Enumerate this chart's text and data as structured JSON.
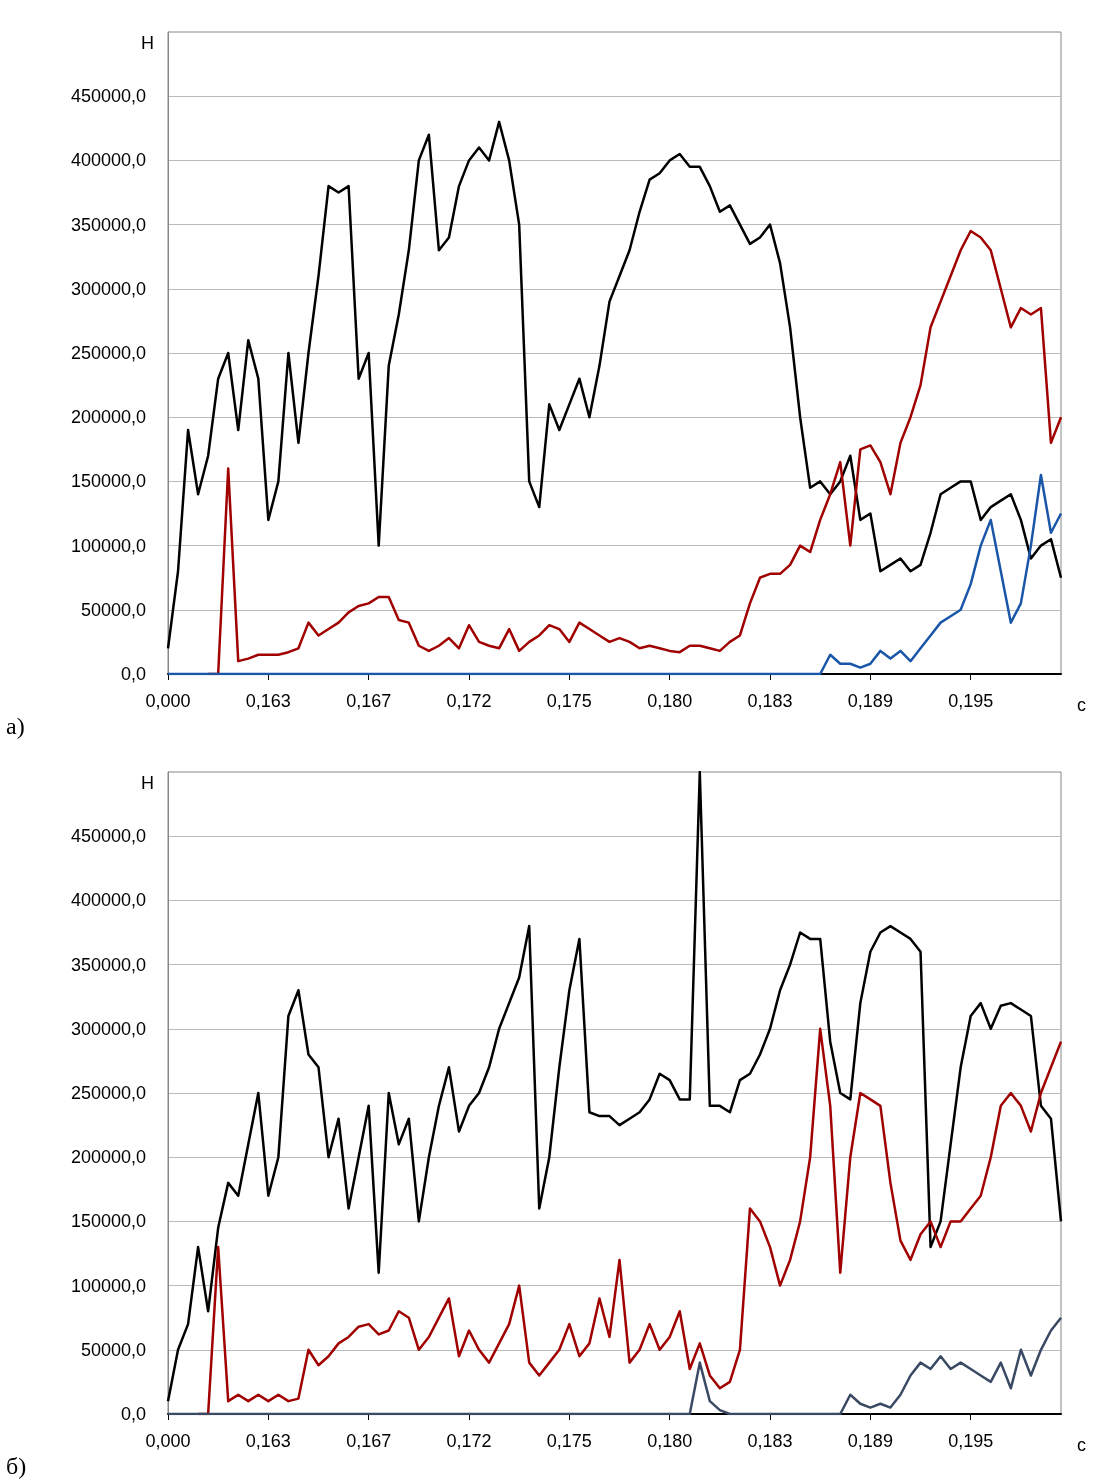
{
  "chart_data": [
    {
      "type": "line",
      "xlabel": "с",
      "ylabel": "Н",
      "annotations": [
        "а)"
      ],
      "categories": [
        "0,000",
        null,
        null,
        null,
        null,
        null,
        null,
        null,
        null,
        null,
        "0,163",
        null,
        null,
        null,
        null,
        null,
        null,
        null,
        null,
        null,
        "0,167",
        null,
        null,
        null,
        null,
        null,
        null,
        null,
        null,
        null,
        "0,172",
        null,
        null,
        null,
        null,
        null,
        null,
        null,
        null,
        null,
        "0,175",
        null,
        null,
        null,
        null,
        null,
        null,
        null,
        null,
        null,
        "0,180",
        null,
        null,
        null,
        null,
        null,
        null,
        null,
        null,
        null,
        "0,183",
        null,
        null,
        null,
        null,
        null,
        null,
        null,
        null,
        null,
        "0,189",
        null,
        null,
        null,
        null,
        null,
        null,
        null,
        null,
        null,
        "0,195",
        null,
        null,
        null,
        null,
        null,
        null,
        null,
        null,
        null
      ],
      "ylim": [
        0,
        500000
      ],
      "yticks": [
        {
          "value": 0,
          "label": "0,0"
        },
        {
          "value": 50000,
          "label": "50000,0"
        },
        {
          "value": 100000,
          "label": "100000,0"
        },
        {
          "value": 150000,
          "label": "150000,0"
        },
        {
          "value": 200000,
          "label": "200000,0"
        },
        {
          "value": 250000,
          "label": "250000,0"
        },
        {
          "value": 300000,
          "label": "300000,0"
        },
        {
          "value": 350000,
          "label": "350000,0"
        },
        {
          "value": 400000,
          "label": "400000,0"
        },
        {
          "value": 450000,
          "label": "450000,0"
        }
      ],
      "grid": "y",
      "marker": "none",
      "line_style": "solid",
      "series": [
        {
          "color": "#000000",
          "values": [
            20000,
            80000,
            190000,
            140000,
            170000,
            230000,
            250000,
            190000,
            260000,
            230000,
            120000,
            150000,
            250000,
            180000,
            250000,
            310000,
            380000,
            375000,
            380000,
            230000,
            250000,
            100000,
            240000,
            280000,
            330000,
            400000,
            420000,
            330000,
            340000,
            380000,
            400000,
            410000,
            400000,
            430000,
            400000,
            350000,
            150000,
            130000,
            210000,
            190000,
            210000,
            230000,
            200000,
            240000,
            290000,
            310000,
            330000,
            360000,
            385000,
            390000,
            400000,
            405000,
            395000,
            395000,
            380000,
            360000,
            365000,
            350000,
            335000,
            340000,
            350000,
            320000,
            270000,
            200000,
            145000,
            150000,
            140000,
            150000,
            170000,
            120000,
            125000,
            80000,
            85000,
            90000,
            80000,
            85000,
            110000,
            140000,
            145000,
            150000,
            150000,
            120000,
            130000,
            135000,
            140000,
            120000,
            90000,
            100000,
            105000,
            75000
          ]
        },
        {
          "color": "#a00000",
          "values": [
            null,
            null,
            null,
            null,
            0,
            0,
            160000,
            10000,
            12000,
            15000,
            15000,
            15000,
            17000,
            20000,
            40000,
            30000,
            35000,
            40000,
            48000,
            53000,
            55000,
            60000,
            60000,
            42000,
            40000,
            22000,
            18000,
            22000,
            28000,
            20000,
            38000,
            25000,
            22000,
            20000,
            35000,
            18000,
            25000,
            30000,
            38000,
            35000,
            25000,
            40000,
            35000,
            30000,
            25000,
            28000,
            25000,
            20000,
            22000,
            20000,
            18000,
            17000,
            22000,
            22000,
            20000,
            18000,
            25000,
            30000,
            55000,
            75000,
            78000,
            78000,
            85000,
            100000,
            95000,
            120000,
            140000,
            165000,
            100000,
            175000,
            178000,
            165000,
            140000,
            180000,
            200000,
            225000,
            270000,
            290000,
            310000,
            330000,
            345000,
            340000,
            330000,
            300000,
            270000,
            285000,
            280000,
            285000,
            180000,
            200000
          ]
        },
        {
          "color": "#1a56a8",
          "values": [
            0,
            0,
            0,
            0,
            0,
            0,
            0,
            0,
            0,
            0,
            0,
            0,
            0,
            0,
            0,
            0,
            0,
            0,
            0,
            0,
            0,
            0,
            0,
            0,
            0,
            0,
            0,
            0,
            0,
            0,
            0,
            0,
            0,
            0,
            0,
            0,
            0,
            0,
            0,
            0,
            0,
            0,
            0,
            0,
            0,
            0,
            0,
            0,
            0,
            0,
            0,
            0,
            0,
            0,
            0,
            0,
            0,
            0,
            0,
            0,
            0,
            0,
            0,
            0,
            0,
            0,
            15000,
            8000,
            8000,
            5000,
            8000,
            18000,
            12000,
            18000,
            10000,
            20000,
            30000,
            40000,
            45000,
            50000,
            70000,
            100000,
            120000,
            80000,
            40000,
            55000,
            100000,
            155000,
            110000,
            125000
          ]
        }
      ]
    },
    {
      "type": "line",
      "xlabel": "с",
      "ylabel": "Н",
      "annotations": [
        "б)"
      ],
      "categories": [
        "0,000",
        null,
        null,
        null,
        null,
        null,
        null,
        null,
        null,
        null,
        "0,163",
        null,
        null,
        null,
        null,
        null,
        null,
        null,
        null,
        null,
        "0,167",
        null,
        null,
        null,
        null,
        null,
        null,
        null,
        null,
        null,
        "0,172",
        null,
        null,
        null,
        null,
        null,
        null,
        null,
        null,
        null,
        "0,175",
        null,
        null,
        null,
        null,
        null,
        null,
        null,
        null,
        null,
        "0,180",
        null,
        null,
        null,
        null,
        null,
        null,
        null,
        null,
        null,
        "0,183",
        null,
        null,
        null,
        null,
        null,
        null,
        null,
        null,
        null,
        "0,189",
        null,
        null,
        null,
        null,
        null,
        null,
        null,
        null,
        null,
        "0,195",
        null,
        null,
        null,
        null,
        null,
        null,
        null,
        null,
        null
      ],
      "ylim": [
        0,
        500000
      ],
      "yticks": [
        {
          "value": 0,
          "label": "0,0"
        },
        {
          "value": 50000,
          "label": "50000,0"
        },
        {
          "value": 100000,
          "label": "100000,0"
        },
        {
          "value": 150000,
          "label": "150000,0"
        },
        {
          "value": 200000,
          "label": "200000,0"
        },
        {
          "value": 250000,
          "label": "250000,0"
        },
        {
          "value": 300000,
          "label": "300000,0"
        },
        {
          "value": 350000,
          "label": "350000,0"
        },
        {
          "value": 400000,
          "label": "400000,0"
        },
        {
          "value": 450000,
          "label": "450000,0"
        }
      ],
      "grid": "y",
      "marker": "none",
      "line_style": "solid",
      "series": [
        {
          "color": "#000000",
          "values": [
            10000,
            50000,
            70000,
            130000,
            80000,
            145000,
            180000,
            170000,
            210000,
            250000,
            170000,
            200000,
            310000,
            330000,
            280000,
            270000,
            200000,
            230000,
            160000,
            200000,
            240000,
            110000,
            250000,
            210000,
            230000,
            150000,
            200000,
            240000,
            270000,
            220000,
            240000,
            250000,
            270000,
            300000,
            320000,
            340000,
            380000,
            160000,
            200000,
            270000,
            330000,
            370000,
            235000,
            232000,
            232000,
            225000,
            230000,
            235000,
            245000,
            265000,
            260000,
            245000,
            245000,
            500000,
            240000,
            240000,
            235000,
            260000,
            265000,
            280000,
            300000,
            330000,
            350000,
            375000,
            370000,
            370000,
            290000,
            250000,
            245000,
            320000,
            360000,
            375000,
            380000,
            375000,
            370000,
            360000,
            130000,
            150000,
            210000,
            270000,
            310000,
            320000,
            300000,
            318000,
            320000,
            315000,
            310000,
            240000,
            230000,
            150000
          ]
        },
        {
          "color": "#a00000",
          "values": [
            null,
            null,
            null,
            0,
            0,
            130000,
            10000,
            15000,
            10000,
            15000,
            10000,
            15000,
            10000,
            12000,
            50000,
            38000,
            45000,
            55000,
            60000,
            68000,
            70000,
            62000,
            65000,
            80000,
            75000,
            50000,
            60000,
            75000,
            90000,
            45000,
            65000,
            50000,
            40000,
            55000,
            70000,
            100000,
            40000,
            30000,
            40000,
            50000,
            70000,
            45000,
            55000,
            90000,
            60000,
            120000,
            40000,
            50000,
            70000,
            50000,
            60000,
            80000,
            35000,
            55000,
            30000,
            20000,
            25000,
            50000,
            160000,
            150000,
            130000,
            100000,
            120000,
            150000,
            200000,
            300000,
            240000,
            110000,
            200000,
            250000,
            245000,
            240000,
            180000,
            135000,
            120000,
            140000,
            150000,
            130000,
            150000,
            150000,
            160000,
            170000,
            200000,
            240000,
            250000,
            240000,
            220000,
            250000,
            270000,
            290000
          ]
        },
        {
          "color": "#3a4a64",
          "values": [
            0,
            0,
            0,
            0,
            0,
            0,
            0,
            0,
            0,
            0,
            0,
            0,
            0,
            0,
            0,
            0,
            0,
            0,
            0,
            0,
            0,
            0,
            0,
            0,
            0,
            0,
            0,
            0,
            0,
            0,
            0,
            0,
            0,
            0,
            0,
            0,
            0,
            0,
            0,
            0,
            0,
            0,
            0,
            0,
            0,
            0,
            0,
            0,
            0,
            0,
            0,
            0,
            0,
            40000,
            10000,
            3000,
            0,
            0,
            0,
            0,
            0,
            0,
            0,
            0,
            0,
            0,
            0,
            0,
            15000,
            8000,
            5000,
            8000,
            5000,
            15000,
            30000,
            40000,
            35000,
            45000,
            35000,
            40000,
            35000,
            30000,
            25000,
            40000,
            20000,
            50000,
            30000,
            50000,
            65000,
            75000
          ]
        }
      ]
    }
  ]
}
